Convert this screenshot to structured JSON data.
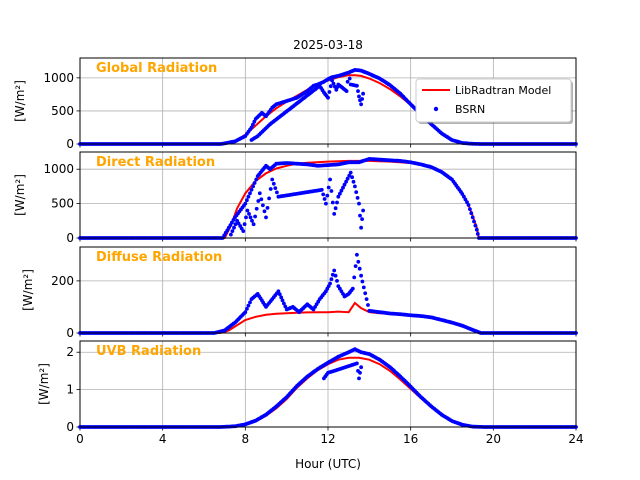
{
  "figure": {
    "title": "2025-03-18",
    "xlabel": "Hour (UTC)",
    "xticks": [
      "0",
      "4",
      "8",
      "12",
      "16",
      "20",
      "24"
    ]
  },
  "legend": {
    "items": [
      {
        "label": "LibRadtran Model",
        "color": "#ff0000",
        "kind": "line"
      },
      {
        "label": "BSRN",
        "color": "#0000ff",
        "kind": "dot"
      }
    ]
  },
  "colors": {
    "label_orange": "#ffa500",
    "model": "#ff0000",
    "obs": "#0000ff",
    "grid": "#b0b0b0"
  },
  "chart_data": [
    {
      "type": "line",
      "panel_label": "Global Radiation",
      "ylabel": "[W/m²]",
      "yticks": [
        "0",
        "500",
        "1000"
      ],
      "xlim": [
        0,
        24
      ],
      "ylim": [
        0,
        1300
      ],
      "grid": true,
      "series": [
        {
          "name": "LibRadtran Model",
          "style": "line",
          "x": [
            6.8,
            7.5,
            8,
            8.5,
            9,
            9.5,
            10,
            10.5,
            11,
            11.5,
            12,
            12.5,
            13,
            13.3,
            13.6,
            14,
            14.5,
            15,
            15.5,
            16,
            16.5,
            17,
            17.5,
            18,
            18.5,
            19,
            19.4
          ],
          "y": [
            0,
            40,
            140,
            280,
            420,
            540,
            640,
            730,
            820,
            900,
            960,
            1010,
            1040,
            1040,
            1030,
            990,
            920,
            830,
            720,
            590,
            440,
            290,
            160,
            60,
            15,
            2,
            0
          ]
        },
        {
          "name": "BSRN",
          "style": "dots",
          "x": [
            0,
            4,
            6.8,
            7,
            7.5,
            8,
            8.3,
            8.5,
            8.8,
            9,
            9.3,
            9.5,
            10,
            10.5,
            11,
            11.3,
            11.5,
            11.8,
            12,
            12.2,
            12.5,
            12.8,
            13,
            13.3,
            13.6,
            14,
            14.5,
            15,
            15.5,
            16,
            16.5,
            17,
            17.5,
            18,
            18.5,
            19,
            19.4,
            20,
            24
          ],
          "y": [
            0,
            0,
            0,
            10,
            40,
            120,
            250,
            380,
            470,
            420,
            550,
            600,
            650,
            700,
            800,
            880,
            900,
            940,
            980,
            1010,
            1030,
            1060,
            1080,
            1120,
            1110,
            1060,
            990,
            890,
            760,
            600,
            450,
            300,
            160,
            60,
            15,
            3,
            0,
            0,
            0
          ]
        },
        {
          "name": "BSRN",
          "style": "dots",
          "x": [
            8.3,
            8.6,
            9.2,
            11.6,
            11.8,
            12.0,
            12.2,
            12.4,
            12.5,
            12.9,
            13.0,
            13.1,
            13.4,
            13.5,
            13.6,
            13.7
          ],
          "y": [
            60,
            120,
            300,
            880,
            780,
            700,
            960,
            820,
            900,
            800,
            1080,
            900,
            880,
            720,
            600,
            760
          ]
        }
      ]
    },
    {
      "type": "line",
      "panel_label": "Direct Radiation",
      "ylabel": "[W/m²]",
      "yticks": [
        "0",
        "500",
        "1000"
      ],
      "xlim": [
        0,
        24
      ],
      "ylim": [
        0,
        1250
      ],
      "grid": true,
      "series": [
        {
          "name": "LibRadtran Model",
          "style": "line",
          "x": [
            0,
            7.0,
            7.3,
            7.6,
            8,
            8.5,
            9,
            9.5,
            10,
            10.5,
            11,
            12,
            13,
            14,
            15,
            16,
            16.5,
            17,
            17.5,
            18,
            18.5,
            18.8,
            19.0,
            19.2,
            19.3,
            24
          ],
          "y": [
            0,
            0,
            180,
            430,
            650,
            830,
            940,
            1010,
            1050,
            1080,
            1095,
            1110,
            1120,
            1120,
            1110,
            1090,
            1070,
            1030,
            960,
            850,
            650,
            480,
            320,
            150,
            0,
            0
          ]
        },
        {
          "name": "BSRN",
          "style": "dots",
          "x": [
            0,
            4,
            6.9,
            7.2,
            7.5,
            8,
            8.3,
            8.6,
            9,
            9.2,
            9.5,
            10,
            10.5,
            11,
            11.5,
            12,
            12.5,
            13,
            13.5,
            14,
            14.5,
            15,
            15.5,
            16,
            16.5,
            17,
            17.5,
            18,
            18.5,
            18.8,
            19.0,
            19.2,
            19.3,
            20,
            24
          ],
          "y": [
            0,
            0,
            0,
            150,
            300,
            500,
            700,
            900,
            1050,
            1000,
            1080,
            1090,
            1080,
            1070,
            1050,
            1060,
            1070,
            1100,
            1100,
            1150,
            1140,
            1130,
            1120,
            1100,
            1070,
            1030,
            960,
            850,
            640,
            480,
            300,
            120,
            0,
            0,
            0
          ]
        },
        {
          "name": "BSRN",
          "style": "dots",
          "x": [
            7.3,
            7.6,
            7.9,
            8.1,
            8.4,
            8.7,
            9.0,
            9.3,
            9.6,
            11.7,
            11.9,
            12.1,
            12.3,
            12.5,
            13.1,
            13.3,
            13.5,
            13.6,
            13.7
          ],
          "y": [
            50,
            250,
            100,
            400,
            200,
            650,
            300,
            850,
            600,
            700,
            500,
            850,
            350,
            600,
            950,
            750,
            500,
            150,
            400
          ]
        }
      ]
    },
    {
      "type": "line",
      "panel_label": "Diffuse Radiation",
      "ylabel": "[W/m²]",
      "yticks": [
        "0",
        "200"
      ],
      "xlim": [
        0,
        24
      ],
      "ylim": [
        0,
        330
      ],
      "grid": true,
      "series": [
        {
          "name": "LibRadtran Model",
          "style": "line",
          "x": [
            0,
            6.8,
            7.2,
            7.6,
            8,
            8.5,
            9,
            9.5,
            10,
            10.5,
            11,
            11.5,
            12,
            12.5,
            13,
            13.3,
            13.6,
            14,
            14.5,
            15,
            15.5,
            16,
            16.5,
            17,
            17.5,
            18,
            18.5,
            19,
            19.4,
            24
          ],
          "y": [
            0,
            0,
            10,
            30,
            50,
            62,
            70,
            74,
            76,
            78,
            79,
            80,
            80,
            82,
            80,
            115,
            95,
            80,
            76,
            74,
            72,
            70,
            65,
            60,
            50,
            38,
            25,
            10,
            0,
            0
          ]
        },
        {
          "name": "BSRN",
          "style": "dots",
          "x": [
            0,
            3,
            6.5,
            7,
            7.5,
            8,
            8.3,
            8.6,
            9,
            9.3,
            9.6,
            10,
            10.3,
            10.6,
            11,
            11.3,
            11.6,
            11.9,
            12.1,
            12.3,
            12.5,
            12.8,
            13,
            13.2,
            13.4,
            13.6,
            14,
            14.5,
            15,
            15.5,
            16,
            16.5,
            17,
            17.5,
            18,
            18.5,
            19,
            19.4,
            20,
            24
          ],
          "y": [
            0,
            0,
            0,
            10,
            40,
            80,
            130,
            150,
            100,
            130,
            160,
            90,
            100,
            80,
            110,
            90,
            130,
            160,
            190,
            240,
            180,
            140,
            150,
            170,
            300,
            220,
            85,
            80,
            75,
            72,
            68,
            65,
            60,
            50,
            40,
            28,
            12,
            0,
            0,
            0
          ]
        }
      ]
    },
    {
      "type": "line",
      "panel_label": "UVB Radiation",
      "ylabel": "[W/m²]",
      "yticks": [
        "0",
        "1",
        "2"
      ],
      "xlim": [
        0,
        24
      ],
      "ylim": [
        0,
        2.3
      ],
      "grid": true,
      "series": [
        {
          "name": "LibRadtran Model",
          "style": "line",
          "x": [
            0,
            6.8,
            7.5,
            8,
            8.5,
            9,
            9.5,
            10,
            10.5,
            11,
            11.5,
            12,
            12.5,
            13,
            13.5,
            14,
            14.5,
            15,
            15.5,
            16,
            16.5,
            17,
            17.5,
            18,
            18.5,
            19,
            19.5,
            24
          ],
          "y": [
            0,
            0,
            0.02,
            0.06,
            0.15,
            0.3,
            0.5,
            0.75,
            1.05,
            1.3,
            1.52,
            1.68,
            1.8,
            1.85,
            1.85,
            1.8,
            1.68,
            1.5,
            1.27,
            1.02,
            0.77,
            0.53,
            0.32,
            0.16,
            0.06,
            0.01,
            0,
            0
          ]
        },
        {
          "name": "BSRN",
          "style": "dots",
          "x": [
            0,
            4,
            6.8,
            7.5,
            8,
            8.5,
            9,
            9.5,
            10,
            10.5,
            11,
            11.5,
            12,
            12.5,
            13,
            13.3,
            13.6,
            14,
            14.5,
            15,
            15.5,
            16,
            16.5,
            17,
            17.5,
            18,
            18.5,
            19,
            19.5,
            20,
            24
          ],
          "y": [
            0,
            0,
            0,
            0.02,
            0.07,
            0.17,
            0.33,
            0.55,
            0.8,
            1.1,
            1.35,
            1.55,
            1.72,
            1.88,
            2.0,
            2.08,
            2.0,
            1.95,
            1.8,
            1.6,
            1.35,
            1.08,
            0.8,
            0.55,
            0.33,
            0.16,
            0.06,
            0.01,
            0,
            0,
            0
          ]
        },
        {
          "name": "BSRN",
          "style": "dots",
          "x": [
            11.8,
            12.0,
            12.3,
            13.4,
            13.5,
            13.6
          ],
          "y": [
            1.3,
            1.45,
            1.5,
            1.7,
            1.3,
            1.6
          ]
        }
      ]
    }
  ]
}
